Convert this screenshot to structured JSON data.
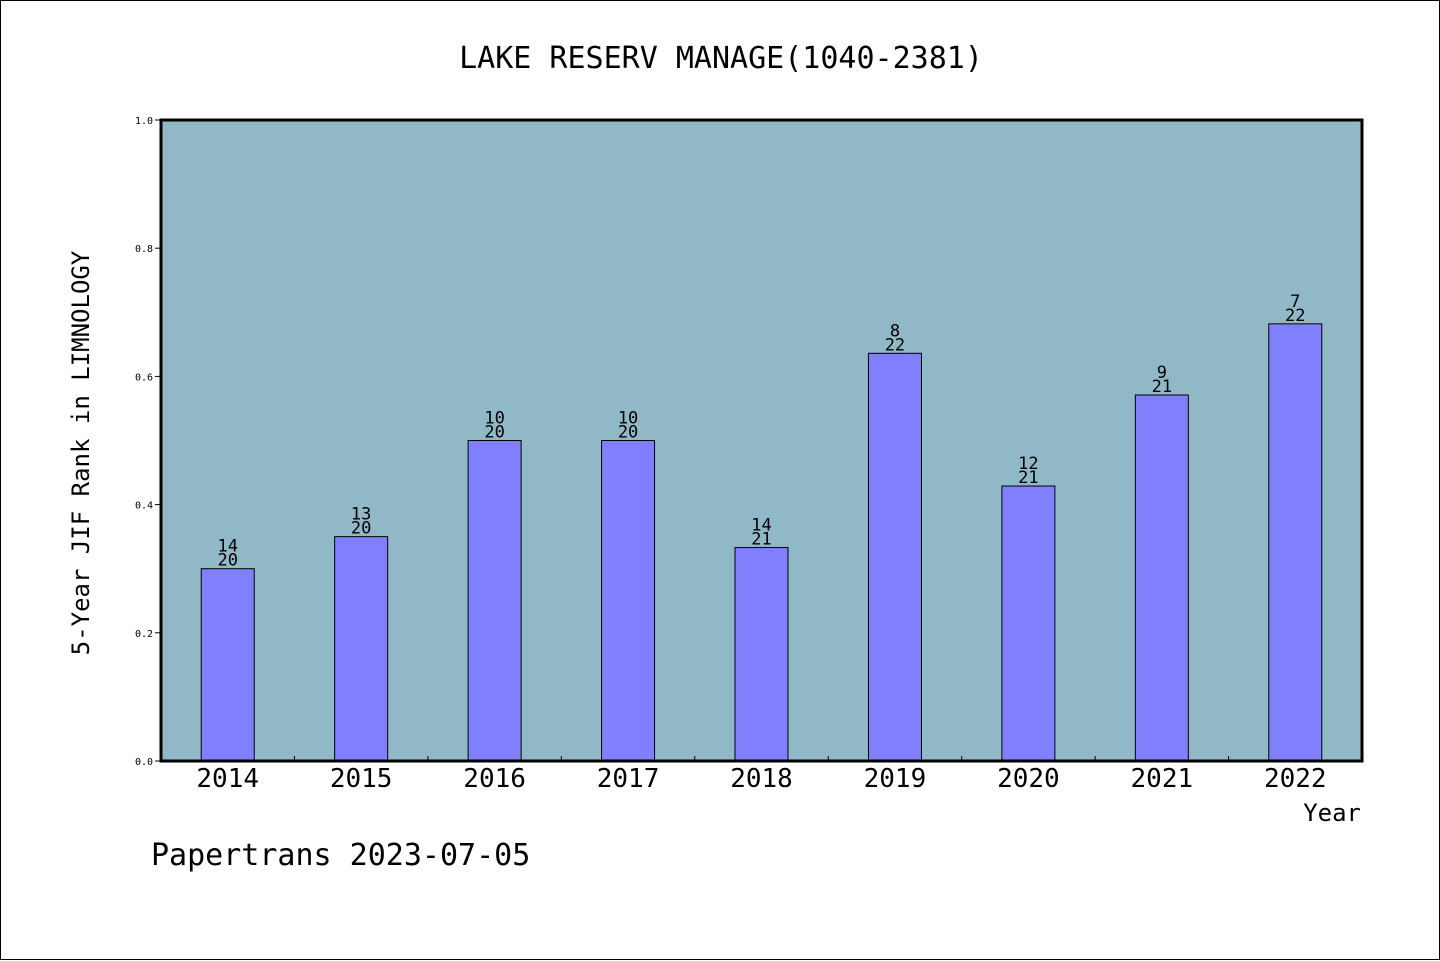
{
  "chart_data": {
    "type": "bar",
    "title": "LAKE RESERV MANAGE(1040-2381)",
    "xlabel": "Year",
    "ylabel": "5-Year JIF Rank in LIMNOLOGY",
    "categories": [
      "2014",
      "2015",
      "2016",
      "2017",
      "2018",
      "2019",
      "2020",
      "2021",
      "2022"
    ],
    "values": [
      0.3,
      0.35,
      0.5,
      0.5,
      0.333,
      0.636,
      0.429,
      0.571,
      0.682
    ],
    "bar_labels": [
      {
        "rank": "14",
        "total": "20"
      },
      {
        "rank": "13",
        "total": "20"
      },
      {
        "rank": "10",
        "total": "20"
      },
      {
        "rank": "10",
        "total": "20"
      },
      {
        "rank": "14",
        "total": "21"
      },
      {
        "rank": "8",
        "total": "22"
      },
      {
        "rank": "12",
        "total": "21"
      },
      {
        "rank": "9",
        "total": "21"
      },
      {
        "rank": "7",
        "total": "22"
      }
    ],
    "ylim": [
      0,
      1.0
    ],
    "yticks": [
      "0.0",
      "0.2",
      "0.4",
      "0.6",
      "0.8",
      "1.0"
    ],
    "grid": false,
    "legend": "none",
    "colors": {
      "plot_background": "#90b8c6",
      "bar_fill": "#8080ff",
      "bar_stroke": "#000000"
    }
  },
  "footer": {
    "credit": "Papertrans 2023-07-05"
  }
}
